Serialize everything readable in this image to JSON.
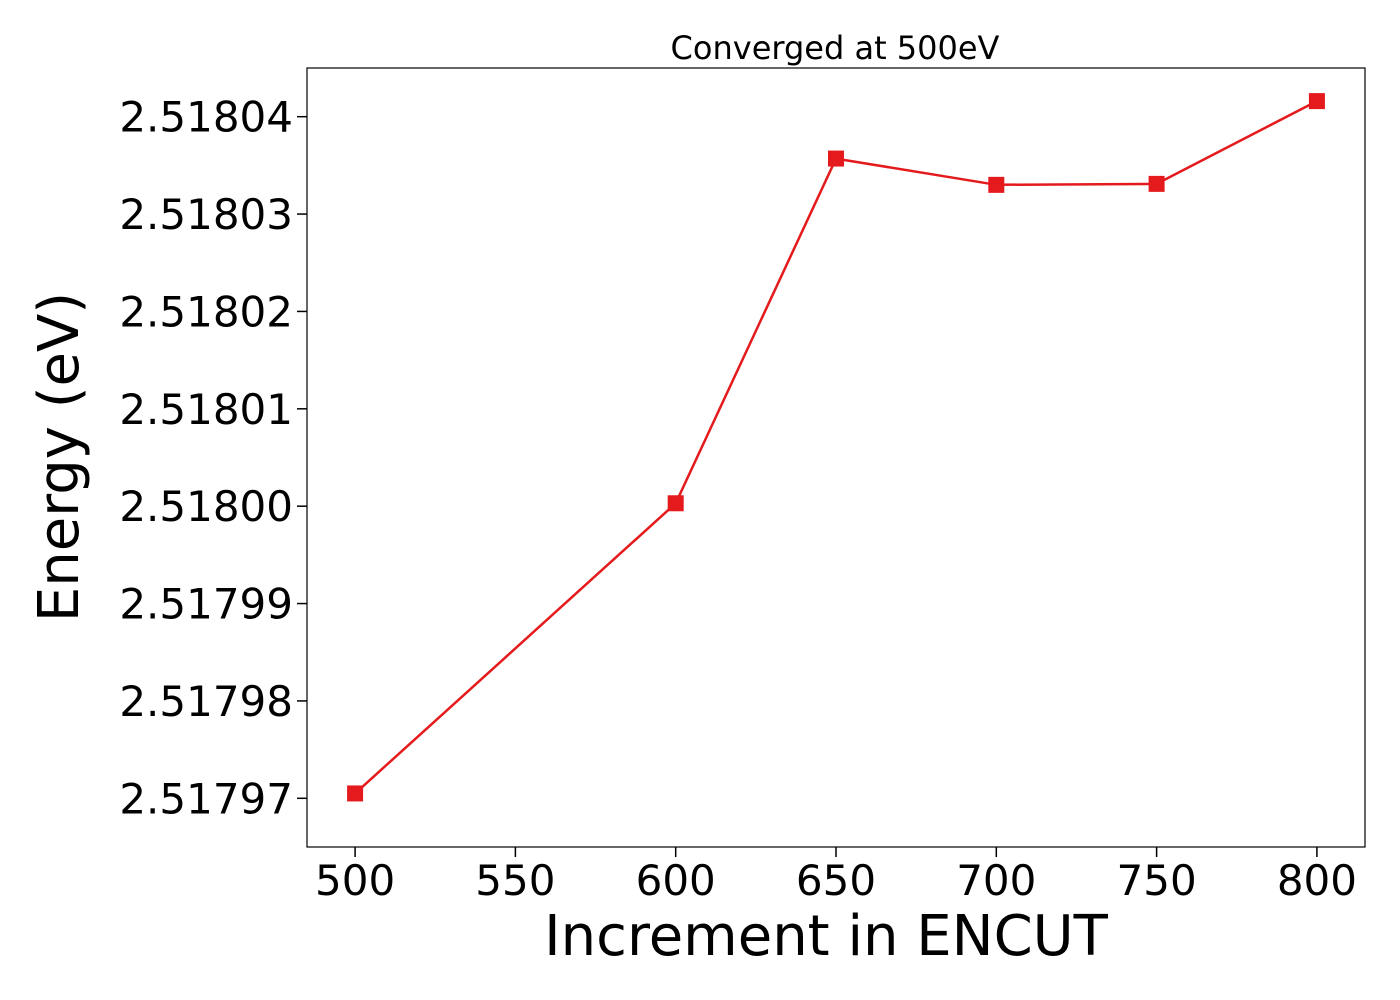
{
  "chart_data": {
    "type": "line",
    "title": "Converged at 500eV",
    "xlabel": "Increment in ENCUT",
    "ylabel": "Energy (eV)",
    "xlim": [
      485,
      815
    ],
    "ylim": [
      2.517965,
      2.518045
    ],
    "x_ticks": [
      500,
      550,
      600,
      650,
      700,
      750,
      800
    ],
    "x_tick_labels": [
      "500",
      "550",
      "600",
      "650",
      "700",
      "750",
      "800"
    ],
    "y_ticks": [
      2.51797,
      2.51798,
      2.51799,
      2.518,
      2.51801,
      2.51802,
      2.51803,
      2.51804
    ],
    "y_tick_labels": [
      "2.51797",
      "2.51798",
      "2.51799",
      "2.51800",
      "2.51801",
      "2.51802",
      "2.51803",
      "2.51804"
    ],
    "grid": false,
    "series": [
      {
        "x": [
          500,
          600,
          650,
          700,
          750,
          800
        ],
        "values": [
          2.5179705,
          2.5180003,
          2.5180357,
          2.518033,
          2.5180331,
          2.5180416
        ],
        "color": "#e41a1c",
        "marker": "square"
      }
    ]
  }
}
